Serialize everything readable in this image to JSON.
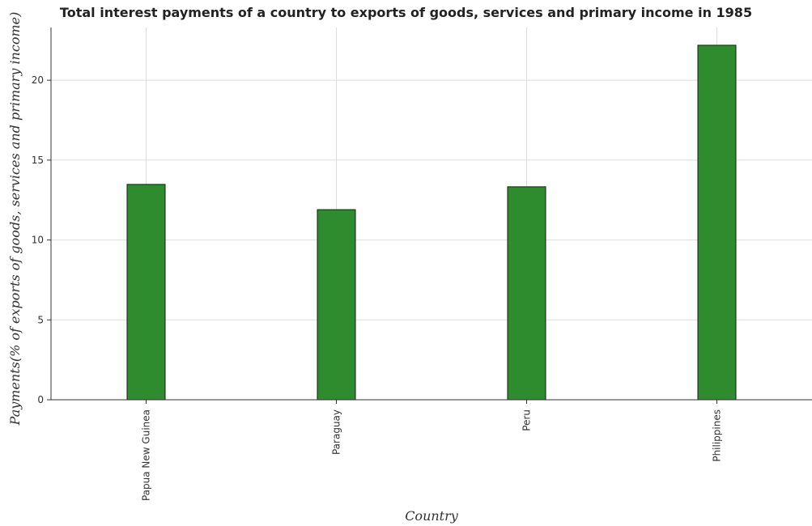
{
  "chart_data": {
    "type": "bar",
    "title": "Total interest payments of a country to exports of goods, services and primary income in 1985",
    "xlabel": "Country",
    "ylabel": "Payments(% of exports of goods, services and primary income)",
    "categories": [
      "Papua New Guinea",
      "Paraguay",
      "Peru",
      "Philippines"
    ],
    "values": [
      13.48,
      11.9,
      13.33,
      22.19
    ],
    "ylim": [
      0,
      23.3
    ],
    "yticks": [
      0,
      5,
      10,
      15,
      20
    ],
    "ytick_labels": [
      "0",
      "5",
      "10",
      "15",
      "20"
    ],
    "grid": true,
    "bar_color": "#2e8b2e",
    "bar_edge_color": "#1a1a1a"
  }
}
